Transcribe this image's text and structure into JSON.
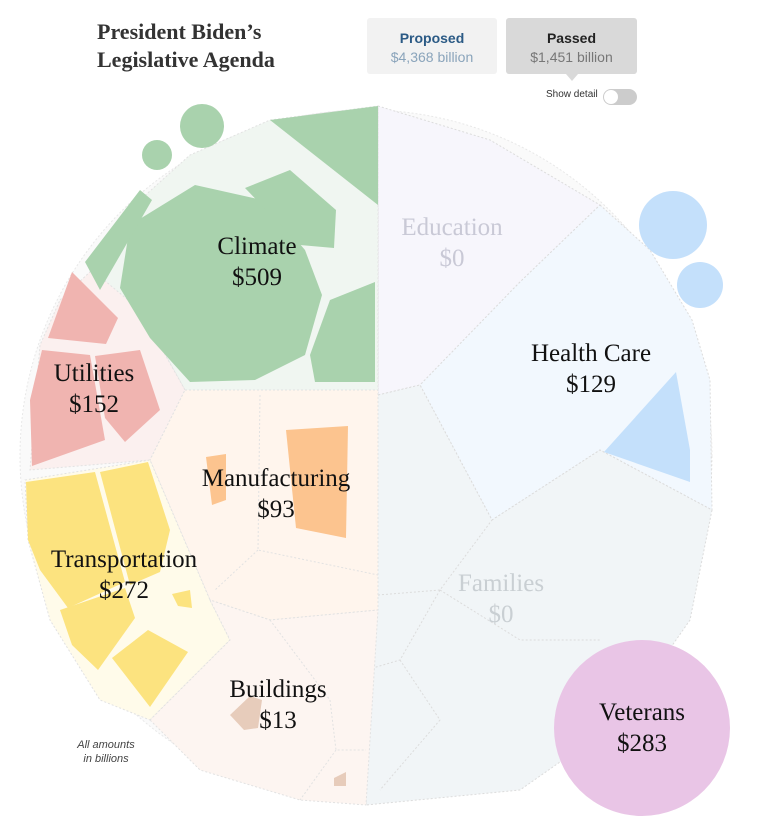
{
  "header": {
    "title_line1": "President Biden’s",
    "title_line2": "Legislative Agenda"
  },
  "toggle": {
    "proposed": {
      "label": "Proposed",
      "amount": "$4,368 billion"
    },
    "passed": {
      "label": "Passed",
      "amount": "$1,451 billion",
      "selected": true
    },
    "show_detail_label": "Show detail",
    "show_detail_on": false
  },
  "note": {
    "line1": "All amounts",
    "line2": "in billions"
  },
  "colors": {
    "climate": "#a9d2ad",
    "utilities": "#f0b4b0",
    "manufacturing": "#fcc48f",
    "transportation": "#fce37f",
    "buildings": "#e7ccbb",
    "health_care": "#c4e0fb",
    "veterans": "#e9c5e6",
    "education": "#c9c9d6",
    "families": "#c9cfd3"
  },
  "chart_data": {
    "type": "voronoi-treemap",
    "unit": "billions of dollars",
    "categories": [
      {
        "key": "climate",
        "name": "Climate",
        "label": "$509",
        "value": 509
      },
      {
        "key": "utilities",
        "name": "Utilities",
        "label": "$152",
        "value": 152
      },
      {
        "key": "manufacturing",
        "name": "Manufacturing",
        "label": "$93",
        "value": 93
      },
      {
        "key": "transportation",
        "name": "Transportation",
        "label": "$272",
        "value": 272
      },
      {
        "key": "buildings",
        "name": "Buildings",
        "label": "$13",
        "value": 13
      },
      {
        "key": "education",
        "name": "Education",
        "label": "$0",
        "value": 0
      },
      {
        "key": "health_care",
        "name": "Health Care",
        "label": "$129",
        "value": 129
      },
      {
        "key": "families",
        "name": "Families",
        "label": "$0",
        "value": 0
      },
      {
        "key": "veterans",
        "name": "Veterans",
        "label": "$283",
        "value": 283
      }
    ]
  }
}
